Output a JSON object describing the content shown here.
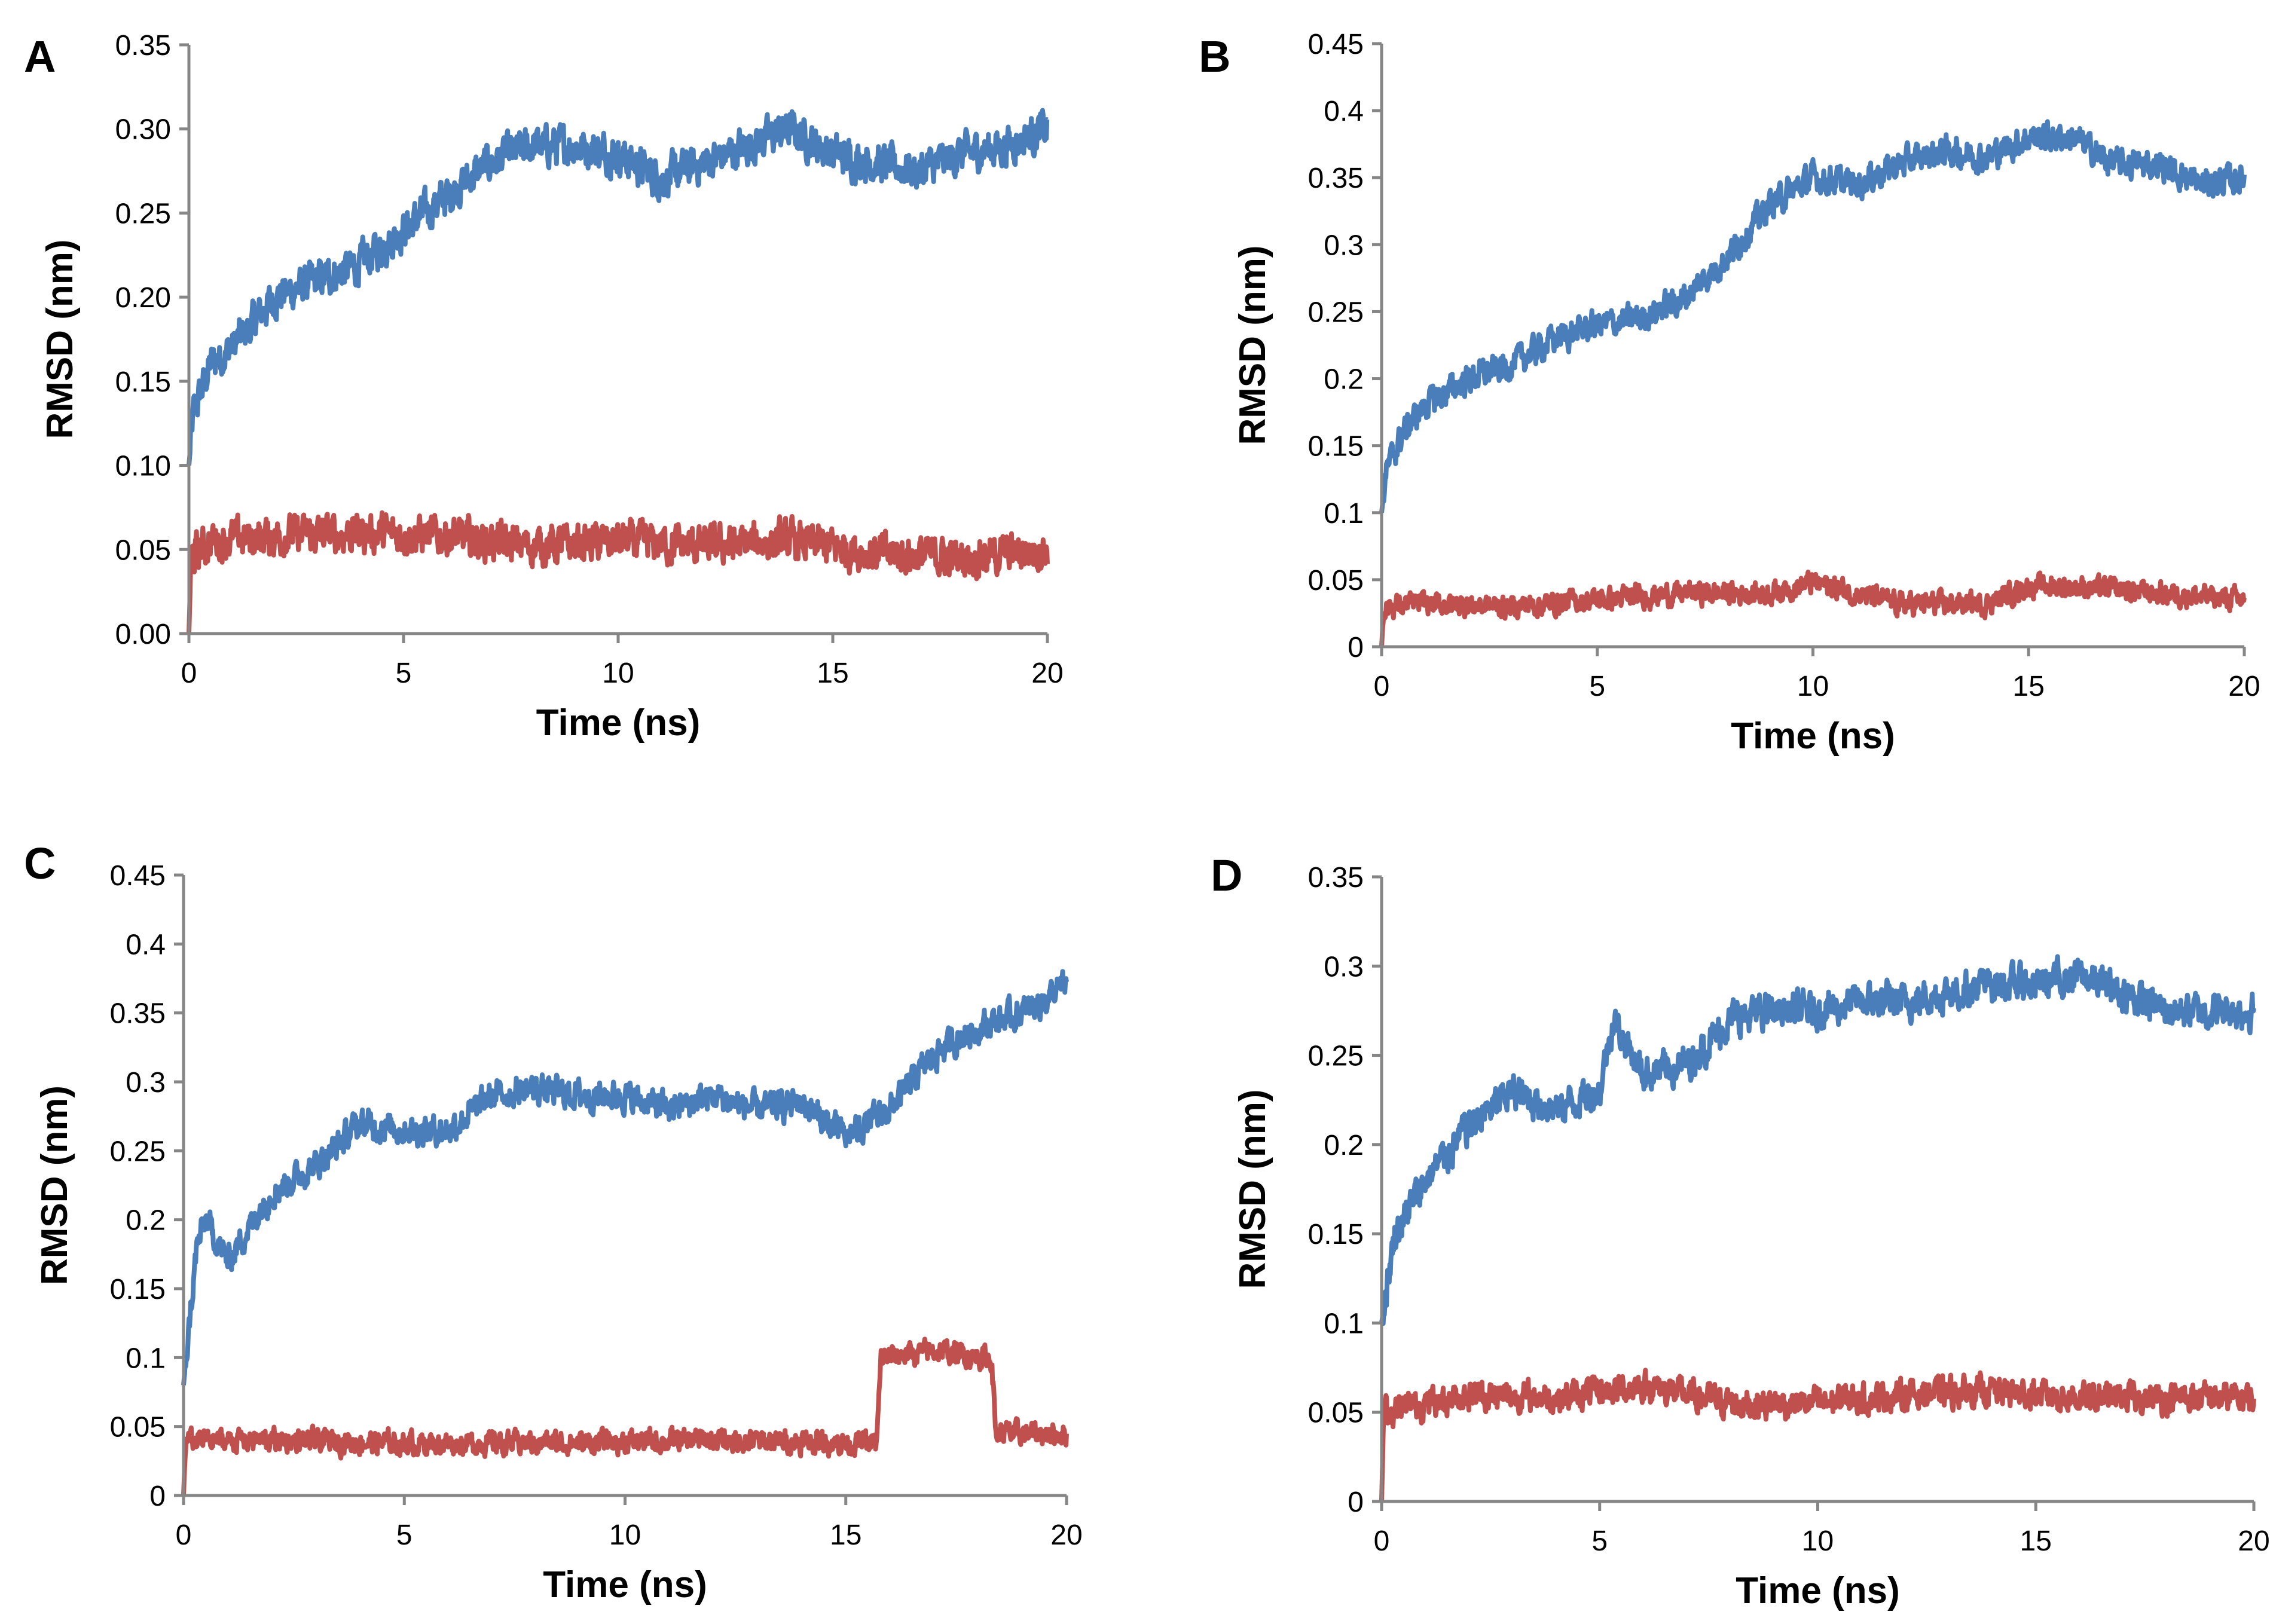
{
  "chart_data": [
    {
      "type": "line",
      "panel": "A",
      "xlabel": "Time (ns)",
      "ylabel": "RMSD (nm)",
      "xlim": [
        0,
        20
      ],
      "ylim": [
        0,
        0.35
      ],
      "xticks": [
        "0",
        "5",
        "10",
        "15",
        "20"
      ],
      "yticks": [
        "0.00",
        "0.05",
        "0.10",
        "0.15",
        "0.20",
        "0.25",
        "0.30",
        "0.35"
      ],
      "grid": false,
      "series": [
        {
          "name": "blue",
          "color": "#4a7ebb",
          "noise": 0.014,
          "x": [
            0,
            0.1,
            0.5,
            1,
            2,
            3,
            4,
            5,
            6,
            7,
            8,
            9,
            10,
            11,
            12,
            13,
            14,
            15,
            16,
            17,
            18,
            19,
            20
          ],
          "y": [
            0.1,
            0.13,
            0.16,
            0.17,
            0.2,
            0.21,
            0.22,
            0.24,
            0.26,
            0.28,
            0.29,
            0.29,
            0.285,
            0.27,
            0.28,
            0.29,
            0.3,
            0.285,
            0.28,
            0.275,
            0.285,
            0.29,
            0.3
          ]
        },
        {
          "name": "red",
          "color": "#c0504d",
          "noise": 0.014,
          "x": [
            0,
            0.05,
            0.5,
            2,
            4,
            6,
            8,
            10,
            12,
            14,
            16,
            18,
            20
          ],
          "y": [
            0,
            0.045,
            0.055,
            0.058,
            0.06,
            0.058,
            0.052,
            0.055,
            0.052,
            0.055,
            0.048,
            0.045,
            0.05
          ]
        }
      ]
    },
    {
      "type": "line",
      "panel": "B",
      "xlabel": "Time (ns)",
      "ylabel": "RMSD (nm)",
      "xlim": [
        0,
        20
      ],
      "ylim": [
        0,
        0.45
      ],
      "xticks": [
        "0",
        "5",
        "10",
        "15",
        "20"
      ],
      "yticks": [
        "0",
        "0.05",
        "0.1",
        "0.15",
        "0.2",
        "0.25",
        "0.3",
        "0.35",
        "0.4",
        "0.45"
      ],
      "grid": false,
      "series": [
        {
          "name": "blue",
          "color": "#4a7ebb",
          "noise": 0.013,
          "x": [
            0,
            0.1,
            0.5,
            1,
            2,
            3,
            4,
            5,
            6,
            7,
            8,
            9,
            10,
            11,
            12,
            13,
            14,
            15,
            16,
            17,
            18,
            19,
            20
          ],
          "y": [
            0.1,
            0.13,
            0.16,
            0.18,
            0.2,
            0.21,
            0.23,
            0.24,
            0.245,
            0.26,
            0.29,
            0.33,
            0.35,
            0.345,
            0.36,
            0.37,
            0.365,
            0.38,
            0.38,
            0.36,
            0.36,
            0.345,
            0.35
          ]
        },
        {
          "name": "red",
          "color": "#c0504d",
          "noise": 0.01,
          "x": [
            0,
            0.05,
            1,
            3,
            5,
            7,
            9,
            10,
            11,
            12,
            14,
            15,
            16,
            18,
            20
          ],
          "y": [
            0,
            0.03,
            0.032,
            0.03,
            0.035,
            0.04,
            0.04,
            0.048,
            0.04,
            0.032,
            0.032,
            0.045,
            0.045,
            0.04,
            0.035
          ]
        }
      ]
    },
    {
      "type": "line",
      "panel": "C",
      "xlabel": "Time (ns)",
      "ylabel": "RMSD (nm)",
      "xlim": [
        0,
        20
      ],
      "ylim": [
        0,
        0.45
      ],
      "xticks": [
        "0",
        "5",
        "10",
        "15",
        "20"
      ],
      "yticks": [
        "0",
        "0.05",
        "0.1",
        "0.15",
        "0.2",
        "0.25",
        "0.3",
        "0.35",
        "0.4",
        "0.45"
      ],
      "grid": false,
      "series": [
        {
          "name": "blue",
          "color": "#4a7ebb",
          "noise": 0.013,
          "x": [
            0,
            0.3,
            0.5,
            1,
            2,
            3,
            4,
            5,
            6,
            7,
            8,
            9,
            10,
            11,
            12,
            13,
            14,
            15,
            16,
            17,
            18,
            19,
            20
          ],
          "y": [
            0.08,
            0.18,
            0.2,
            0.17,
            0.22,
            0.24,
            0.27,
            0.265,
            0.265,
            0.29,
            0.295,
            0.29,
            0.29,
            0.28,
            0.29,
            0.28,
            0.285,
            0.26,
            0.28,
            0.32,
            0.34,
            0.35,
            0.37
          ]
        },
        {
          "name": "red",
          "color": "#c0504d",
          "noise": 0.01,
          "x": [
            0,
            0.05,
            2,
            5,
            8,
            12,
            15.7,
            15.8,
            17,
            18.3,
            18.4,
            20
          ],
          "y": [
            0,
            0.04,
            0.04,
            0.038,
            0.038,
            0.04,
            0.038,
            0.1,
            0.105,
            0.1,
            0.045,
            0.045
          ]
        }
      ]
    },
    {
      "type": "line",
      "panel": "D",
      "xlabel": "Time (ns)",
      "ylabel": "RMSD (nm)",
      "xlim": [
        0,
        20
      ],
      "ylim": [
        0,
        0.35
      ],
      "xticks": [
        "0",
        "5",
        "10",
        "15",
        "20"
      ],
      "yticks": [
        "0",
        "0.05",
        "0.1",
        "0.15",
        "0.2",
        "0.25",
        "0.3",
        "0.35"
      ],
      "grid": false,
      "series": [
        {
          "name": "blue",
          "color": "#4a7ebb",
          "noise": 0.012,
          "x": [
            0,
            0.3,
            1,
            2,
            3,
            4,
            5,
            5.3,
            6,
            7,
            8,
            9,
            10,
            11,
            12,
            13,
            14,
            15,
            16,
            17,
            18,
            19,
            20
          ],
          "y": [
            0.1,
            0.15,
            0.18,
            0.21,
            0.23,
            0.22,
            0.23,
            0.27,
            0.24,
            0.245,
            0.27,
            0.275,
            0.275,
            0.28,
            0.28,
            0.285,
            0.29,
            0.29,
            0.295,
            0.285,
            0.275,
            0.275,
            0.275
          ]
        },
        {
          "name": "red",
          "color": "#c0504d",
          "noise": 0.01,
          "x": [
            0,
            0.05,
            1,
            2,
            4,
            6,
            8,
            10,
            12,
            14,
            16,
            18,
            20
          ],
          "y": [
            0,
            0.05,
            0.055,
            0.06,
            0.058,
            0.065,
            0.055,
            0.055,
            0.06,
            0.062,
            0.058,
            0.058,
            0.058
          ]
        }
      ]
    }
  ]
}
